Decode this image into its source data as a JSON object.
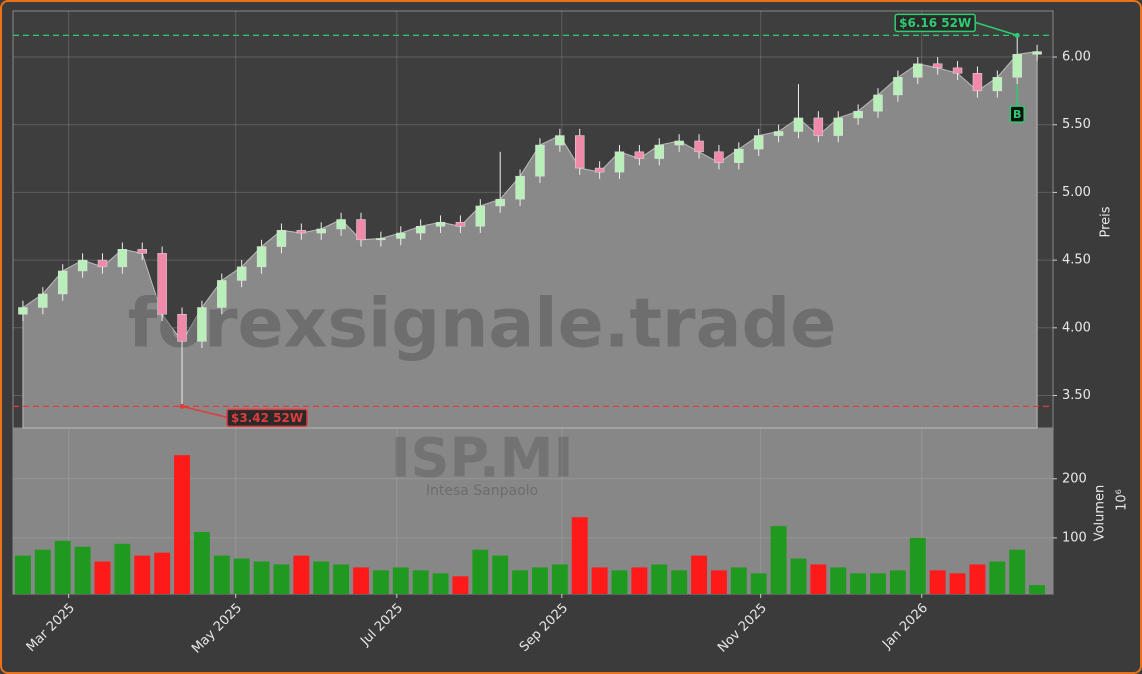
{
  "chart_data": {
    "type": "candlestick",
    "watermark": "forexsignale.trade",
    "symbol": "ISP.MI",
    "company": "Intesa Sanpaolo",
    "y_label": "Preis",
    "xlim": [
      -0.5,
      51.8
    ],
    "xticks": [
      {
        "value": 2.3,
        "label": "Mar 2025"
      },
      {
        "value": 10.7,
        "label": "May 2025"
      },
      {
        "value": 18.8,
        "label": "Jul 2025"
      },
      {
        "value": 27.1,
        "label": "Sep 2025"
      },
      {
        "value": 37.1,
        "label": "Nov 2025"
      },
      {
        "value": 45.2,
        "label": "Jan 2026"
      }
    ],
    "ylim": [
      3.26,
      6.34
    ],
    "yticks": [
      {
        "value": 3.5,
        "label": "3.50"
      },
      {
        "value": 4,
        "label": "4.00"
      },
      {
        "value": 4.5,
        "label": "4.50"
      },
      {
        "value": 5,
        "label": "5.00"
      },
      {
        "value": 5.5,
        "label": "5.50"
      },
      {
        "value": 6,
        "label": "6.00"
      }
    ],
    "grid": true,
    "up_color": "#b9f0b9",
    "down_color": "#f08aa8",
    "area_color": "#898989",
    "candles": {
      "open": [
        4.1,
        4.15,
        4.25,
        4.42,
        4.5,
        4.45,
        4.58,
        4.55,
        4.1,
        3.9,
        4.15,
        4.35,
        4.45,
        4.6,
        4.72,
        4.7,
        4.73,
        4.8,
        4.65,
        4.66,
        4.7,
        4.75,
        4.78,
        4.75,
        4.9,
        4.95,
        5.12,
        5.35,
        5.42,
        5.18,
        5.15,
        5.3,
        5.25,
        5.35,
        5.38,
        5.3,
        5.22,
        5.32,
        5.42,
        5.45,
        5.55,
        5.42,
        5.55,
        5.6,
        5.72,
        5.85,
        5.95,
        5.92,
        5.88,
        5.75,
        5.85,
        6.02
      ],
      "high": [
        4.2,
        4.3,
        4.47,
        4.55,
        4.55,
        4.63,
        4.63,
        4.6,
        4.15,
        4.2,
        4.4,
        4.5,
        4.65,
        4.77,
        4.77,
        4.78,
        4.85,
        4.85,
        4.71,
        4.75,
        4.8,
        4.83,
        4.83,
        4.95,
        5.3,
        5.17,
        5.4,
        5.47,
        5.47,
        5.23,
        5.35,
        5.35,
        5.4,
        5.43,
        5.43,
        5.35,
        5.37,
        5.47,
        5.5,
        5.8,
        5.6,
        5.6,
        5.65,
        5.77,
        5.9,
        6.0,
        6.0,
        5.97,
        5.93,
        5.9,
        6.16,
        6.09
      ],
      "low": [
        4.05,
        4.1,
        4.2,
        4.37,
        4.4,
        4.4,
        4.5,
        4.05,
        3.42,
        3.85,
        4.1,
        4.3,
        4.4,
        4.55,
        4.65,
        4.65,
        4.68,
        4.6,
        4.6,
        4.61,
        4.65,
        4.7,
        4.7,
        4.7,
        4.85,
        4.9,
        5.07,
        5.3,
        5.13,
        5.1,
        5.1,
        5.2,
        5.2,
        5.3,
        5.25,
        5.17,
        5.17,
        5.27,
        5.37,
        5.4,
        5.37,
        5.37,
        5.5,
        5.55,
        5.67,
        5.8,
        5.87,
        5.83,
        5.7,
        5.7,
        5.8,
        5.97
      ],
      "close": [
        4.15,
        4.25,
        4.42,
        4.5,
        4.45,
        4.58,
        4.55,
        4.1,
        3.9,
        4.15,
        4.35,
        4.45,
        4.6,
        4.72,
        4.7,
        4.73,
        4.8,
        4.65,
        4.66,
        4.7,
        4.75,
        4.78,
        4.75,
        4.9,
        4.95,
        5.12,
        5.35,
        5.42,
        5.18,
        5.15,
        5.3,
        5.25,
        5.35,
        5.38,
        5.3,
        5.22,
        5.32,
        5.42,
        5.45,
        5.55,
        5.42,
        5.55,
        5.6,
        5.72,
        5.85,
        5.95,
        5.92,
        5.88,
        5.75,
        5.85,
        6.02,
        6.04
      ]
    },
    "annotations": [
      {
        "label": "$6.16 52W",
        "value": 6.16,
        "color": "#2ecc71"
      },
      {
        "label": "$3.42 52W",
        "value": 3.42,
        "color": "#e03c3c"
      }
    ],
    "signal": {
      "label": "B",
      "color": "#2ecc71"
    },
    "volume": {
      "axis_label": "Volumen",
      "scale_label": "10⁶",
      "up_color": "#1f9a1f",
      "down_color": "#ff1a1a",
      "ylim": [
        5,
        286
      ],
      "yticks": [
        100,
        200
      ],
      "values": [
        70,
        80,
        95,
        85,
        60,
        90,
        70,
        75,
        240,
        110,
        70,
        65,
        60,
        55,
        70,
        60,
        55,
        50,
        45,
        50,
        45,
        40,
        35,
        80,
        70,
        45,
        50,
        55,
        135,
        50,
        45,
        50,
        55,
        45,
        70,
        45,
        50,
        40,
        120,
        65,
        55,
        50,
        40,
        40,
        45,
        100,
        45,
        40,
        55,
        60,
        80,
        20
      ]
    }
  }
}
